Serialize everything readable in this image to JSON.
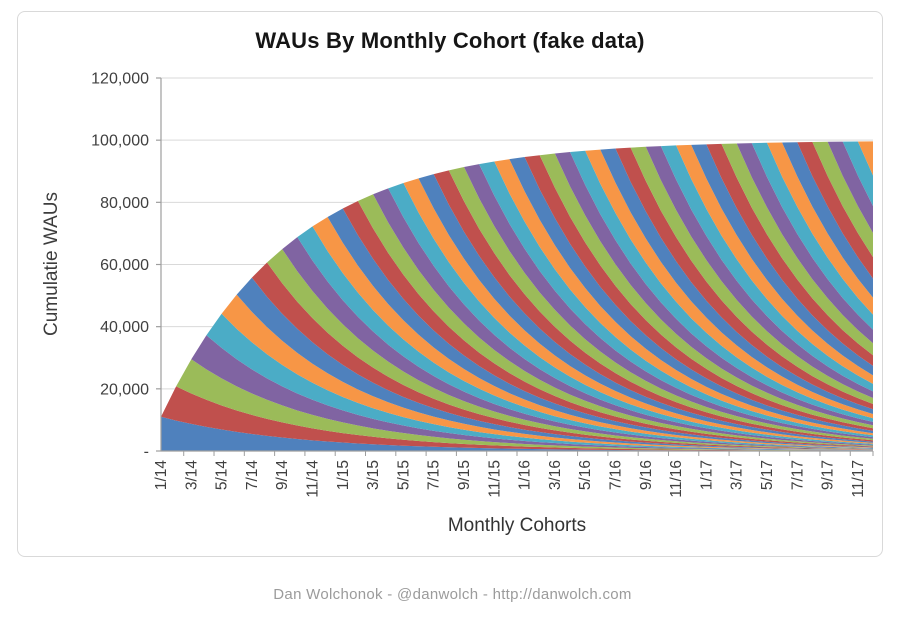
{
  "page": {
    "footer": "Dan Wolchonok - @danwolch - http://danwolch.com"
  },
  "chart_data": {
    "type": "area",
    "stacked": true,
    "title": "WAUs By Monthly Cohort (fake data)",
    "xlabel": "Monthly Cohorts",
    "ylabel": "Cumulatie WAUs",
    "ylim": [
      0,
      120000
    ],
    "ytick_step": 20000,
    "ytick_labels": [
      "-",
      "20,000",
      "40,000",
      "60,000",
      "80,000",
      "100,000",
      "120,000"
    ],
    "grid": "horizontal-only",
    "legend": "none",
    "categories": [
      "1/14",
      "2/14",
      "3/14",
      "4/14",
      "5/14",
      "6/14",
      "7/14",
      "8/14",
      "9/14",
      "10/14",
      "11/14",
      "12/14",
      "1/15",
      "2/15",
      "3/15",
      "4/15",
      "5/15",
      "6/15",
      "7/15",
      "8/15",
      "9/15",
      "10/15",
      "11/15",
      "12/15",
      "1/16",
      "2/16",
      "3/16",
      "4/16",
      "5/16",
      "6/16",
      "7/16",
      "8/16",
      "9/16",
      "10/16",
      "11/16",
      "12/16",
      "1/17",
      "2/17",
      "3/17",
      "4/17",
      "5/17",
      "6/17",
      "7/17",
      "8/17",
      "9/17",
      "10/17",
      "11/17",
      "12/17"
    ],
    "xtick_labels": [
      "1/14",
      "3/14",
      "5/14",
      "7/14",
      "9/14",
      "11/14",
      "1/15",
      "3/15",
      "5/15",
      "7/15",
      "9/15",
      "11/15",
      "1/16",
      "3/16",
      "5/16",
      "7/16",
      "9/16",
      "11/16",
      "1/17",
      "3/17",
      "5/17",
      "7/17",
      "9/17",
      "11/17"
    ],
    "xtick_interval_months": 2,
    "palette": [
      "#4F81BD",
      "#C0504D",
      "#9BBB59",
      "#8064A2",
      "#4BACC6",
      "#F79646"
    ],
    "cohort_model": {
      "description": "One series per monthly cohort; each cohort starts at initial_waus in its start month and decays geometrically; stack plateaus near asymptote_waus",
      "cohorts": 48,
      "initial_waus": 11000,
      "monthly_retention": 0.89,
      "asymptote_waus": 100000
    },
    "stack_totals": [
      11000,
      20790,
      29503,
      37258,
      44159,
      50302,
      55769,
      60634,
      64964,
      68818,
      72248,
      75301,
      78018,
      80436,
      82588,
      84503,
      86208,
      87725,
      89075,
      90277,
      91347,
      92298,
      93146,
      93900,
      94571,
      95168,
      95699,
      96172,
      96593,
      96968,
      97302,
      97599,
      97863,
      98098,
      98307,
      98493,
      98659,
      98807,
      98938,
      99055,
      99159,
      99251,
      99334,
      99407,
      99472,
      99530,
      99582,
      99628
    ],
    "colors": {
      "gridline": "#d9d9d9",
      "axis": "#9e9e9e",
      "tick_label": "#404040",
      "title": "#151515",
      "footer": "#9b9b9b"
    }
  }
}
